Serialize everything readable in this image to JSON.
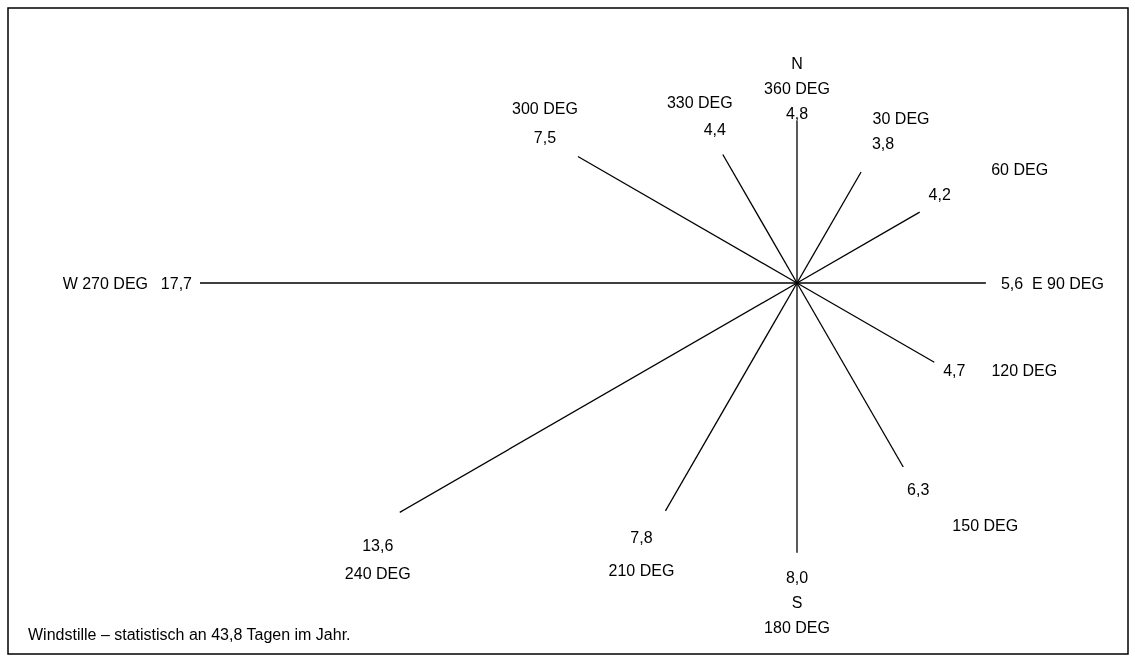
{
  "chart_data": {
    "type": "other",
    "color": "#000000",
    "categories": [
      "N\n360 DEG",
      "30 DEG",
      "60 DEG",
      "E 90 DEG",
      "120 DEG",
      "150 DEG",
      "S\n180 DEG",
      "210 DEG",
      "240 DEG",
      "W 270 DEG",
      "300 DEG",
      "330 DEG"
    ],
    "values": [
      4.8,
      3.8,
      4.2,
      5.6,
      4.7,
      6.3,
      8.0,
      7.8,
      13.6,
      17.7,
      7.5,
      4.4
    ],
    "value_labels": [
      "4,8",
      "3,8",
      "4,2",
      "5,6",
      "4,7",
      "6,3",
      "8,0",
      "7,8",
      "13,6",
      "17,7",
      "7,5",
      "4,4"
    ],
    "annotations": [
      "Windstille – statistisch an 43,8 Tagen im Jahr."
    ]
  }
}
